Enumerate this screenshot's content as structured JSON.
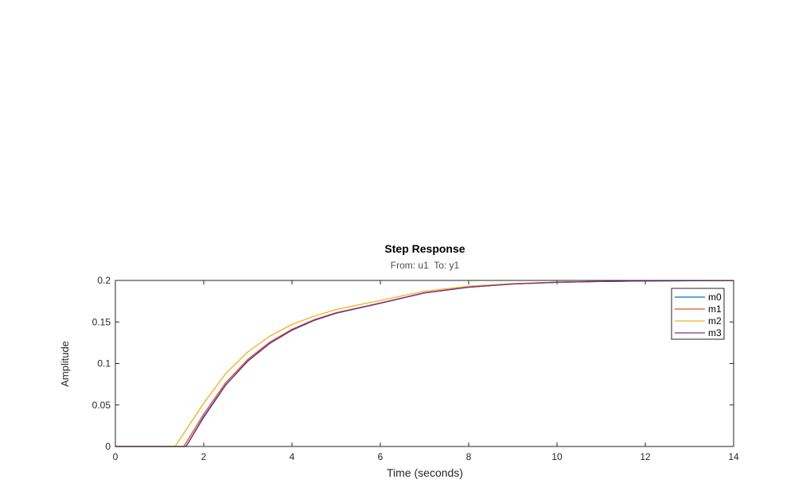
{
  "chart_data": {
    "type": "line",
    "title": "Step Response",
    "subtitle": "From: u1  To: y1",
    "xlabel": "Time (seconds)",
    "ylabel": "Amplitude",
    "xlim": [
      0,
      14
    ],
    "ylim": [
      0,
      0.2
    ],
    "xticks": [
      0,
      2,
      4,
      6,
      8,
      10,
      12,
      14
    ],
    "xtick_labels": [
      "0",
      "2",
      "4",
      "6",
      "8",
      "10",
      "12",
      "14"
    ],
    "yticks": [
      0,
      0.05,
      0.1,
      0.15,
      0.2
    ],
    "ytick_labels": [
      "0",
      "0.05",
      "0.1",
      "0.15",
      "0.2"
    ],
    "grid": false,
    "legend_position": "top-right",
    "series": [
      {
        "name": "m0",
        "color": "#0072BD",
        "x": [
          0,
          1.5,
          1.6,
          2,
          2.5,
          3,
          3.5,
          4,
          4.5,
          5,
          6,
          7,
          8,
          9,
          10,
          11,
          12,
          13,
          14
        ],
        "y": [
          0,
          0,
          0,
          0.035,
          0.074,
          0.1028,
          0.1242,
          0.14,
          0.1518,
          0.1605,
          0.1725,
          0.1849,
          0.1918,
          0.1957,
          0.1978,
          0.1988,
          0.1994,
          0.1997,
          0.1999
        ]
      },
      {
        "name": "m1",
        "color": "#D95319",
        "x": [
          0,
          1.5,
          1.55,
          2,
          2.5,
          3,
          3.5,
          4,
          4.5,
          5,
          6,
          7,
          8,
          9,
          10,
          11,
          12,
          13,
          14
        ],
        "y": [
          0,
          0,
          0,
          0.039,
          0.077,
          0.105,
          0.1258,
          0.1412,
          0.1527,
          0.1611,
          0.1729,
          0.1852,
          0.192,
          0.1958,
          0.1978,
          0.1988,
          0.1994,
          0.1997,
          0.1999
        ]
      },
      {
        "name": "m2",
        "color": "#EDB120",
        "x": [
          0,
          1.3,
          1.35,
          2,
          2.5,
          3,
          3.5,
          4,
          4.5,
          5,
          6,
          7,
          8,
          9,
          10,
          11,
          12,
          13,
          14
        ],
        "y": [
          0,
          0,
          0,
          0.052,
          0.088,
          0.114,
          0.133,
          0.147,
          0.157,
          0.165,
          0.176,
          0.187,
          0.193,
          0.1963,
          0.1981,
          0.199,
          0.1995,
          0.1998,
          0.1999
        ]
      },
      {
        "name": "m3",
        "color": "#7E2F8E",
        "x": [
          0,
          1.55,
          1.6,
          2,
          2.5,
          3,
          3.5,
          4,
          4.5,
          5,
          6,
          7,
          8,
          9,
          10,
          11,
          12,
          13,
          14
        ],
        "y": [
          0,
          0,
          0,
          0.036,
          0.0745,
          0.1032,
          0.1245,
          0.1403,
          0.152,
          0.1606,
          0.1726,
          0.185,
          0.1919,
          0.1957,
          0.1978,
          0.1988,
          0.1994,
          0.1997,
          0.1999
        ]
      }
    ]
  },
  "colors": {
    "axis": "#262626",
    "tick_text": "#262626",
    "subtitle_text": "#4d4d4d",
    "background": "#ffffff"
  }
}
